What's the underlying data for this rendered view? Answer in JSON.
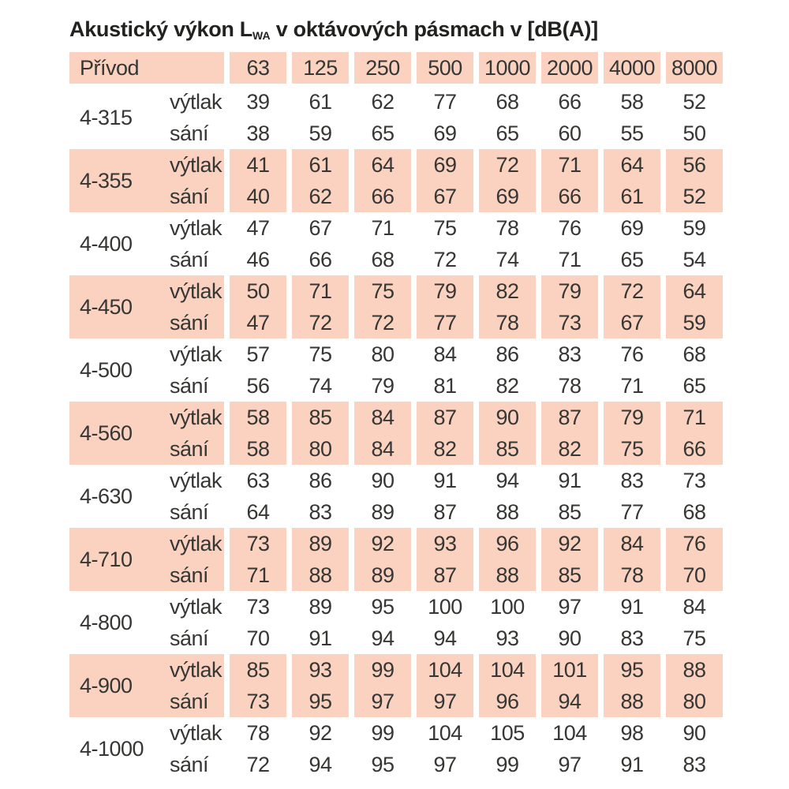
{
  "title": {
    "prefix": "Akustický výkon L",
    "subscript": "WA",
    "suffix": " v oktávových pásmach v [dB(A)]"
  },
  "colors": {
    "shade": "#fad2bf",
    "text": "#363634"
  },
  "table": {
    "header": {
      "label": "Přívod",
      "bands": [
        "63",
        "125",
        "250",
        "500",
        "1000",
        "2000",
        "4000",
        "8000"
      ]
    },
    "row_labels": {
      "discharge": "výtlak",
      "suction": "sání"
    },
    "groups": [
      {
        "size": "4-315",
        "shaded": false,
        "vytlak": [
          39,
          61,
          62,
          77,
          68,
          66,
          58,
          52
        ],
        "sani": [
          38,
          59,
          65,
          69,
          65,
          60,
          55,
          50
        ]
      },
      {
        "size": "4-355",
        "shaded": true,
        "vytlak": [
          41,
          61,
          64,
          69,
          72,
          71,
          64,
          56
        ],
        "sani": [
          40,
          62,
          66,
          67,
          69,
          66,
          61,
          52
        ]
      },
      {
        "size": "4-400",
        "shaded": false,
        "vytlak": [
          47,
          67,
          71,
          75,
          78,
          76,
          69,
          59
        ],
        "sani": [
          46,
          66,
          68,
          72,
          74,
          71,
          65,
          54
        ]
      },
      {
        "size": "4-450",
        "shaded": true,
        "vytlak": [
          50,
          71,
          75,
          79,
          82,
          79,
          72,
          64
        ],
        "sani": [
          47,
          72,
          72,
          77,
          78,
          73,
          67,
          59
        ]
      },
      {
        "size": "4-500",
        "shaded": false,
        "vytlak": [
          57,
          75,
          80,
          84,
          86,
          83,
          76,
          68
        ],
        "sani": [
          56,
          74,
          79,
          81,
          82,
          78,
          71,
          65
        ]
      },
      {
        "size": "4-560",
        "shaded": true,
        "vytlak": [
          58,
          85,
          84,
          87,
          90,
          87,
          79,
          71
        ],
        "sani": [
          58,
          80,
          84,
          82,
          85,
          82,
          75,
          66
        ]
      },
      {
        "size": "4-630",
        "shaded": false,
        "vytlak": [
          63,
          86,
          90,
          91,
          94,
          91,
          83,
          73
        ],
        "sani": [
          64,
          83,
          89,
          87,
          88,
          85,
          77,
          68
        ]
      },
      {
        "size": "4-710",
        "shaded": true,
        "vytlak": [
          73,
          89,
          92,
          93,
          96,
          92,
          84,
          76
        ],
        "sani": [
          71,
          88,
          89,
          87,
          88,
          85,
          78,
          70
        ]
      },
      {
        "size": "4-800",
        "shaded": false,
        "vytlak": [
          73,
          89,
          95,
          100,
          100,
          97,
          91,
          84
        ],
        "sani": [
          70,
          91,
          94,
          94,
          93,
          90,
          83,
          75
        ]
      },
      {
        "size": "4-900",
        "shaded": true,
        "vytlak": [
          85,
          93,
          99,
          104,
          104,
          101,
          95,
          88
        ],
        "sani": [
          73,
          95,
          97,
          97,
          96,
          94,
          88,
          80
        ]
      },
      {
        "size": "4-1000",
        "shaded": false,
        "vytlak": [
          78,
          92,
          99,
          104,
          105,
          104,
          98,
          90
        ],
        "sani": [
          72,
          94,
          95,
          97,
          99,
          97,
          91,
          83
        ]
      }
    ]
  }
}
